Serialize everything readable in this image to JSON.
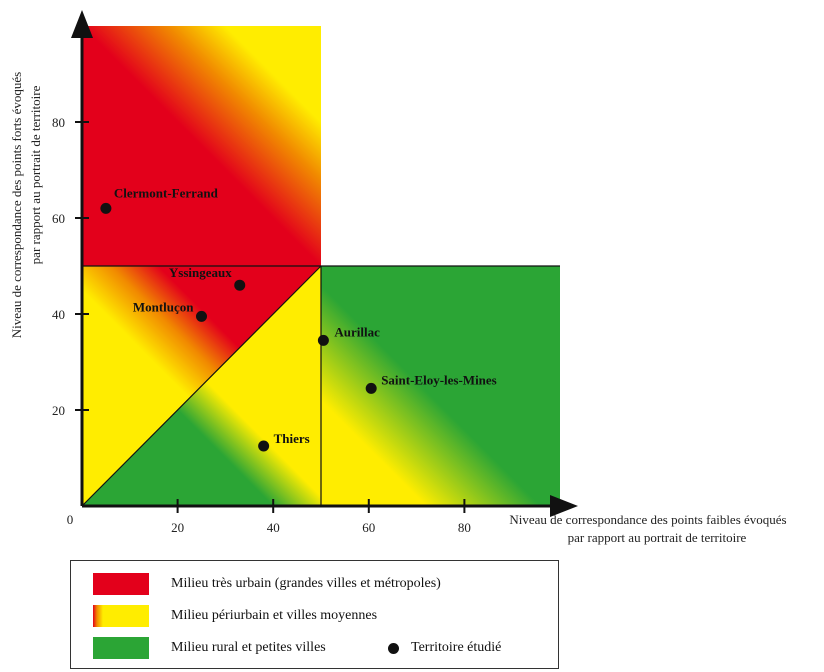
{
  "chart_data": {
    "type": "scatter",
    "xlabel": [
      "Niveau de correspondance des points faibles évoqués",
      "par rapport au portrait de territoire"
    ],
    "ylabel": [
      "Niveau de correspondance des points forts évoqués",
      "par rapport au portrait de territoire"
    ],
    "xlim": [
      0,
      100
    ],
    "ylim": [
      0,
      100
    ],
    "x_ticks": [
      20,
      40,
      60,
      80
    ],
    "y_ticks": [
      20,
      40,
      60,
      80
    ],
    "origin_label": "0",
    "grid": false,
    "zones": {
      "very_urban": {
        "label": "Milieu très urbain (grandes villes et métropoles)",
        "color": "#e3001b"
      },
      "periurban": {
        "label": "Milieu périurbain et villes moyennes",
        "color": "#ffed00"
      },
      "rural": {
        "label": "Milieu rural et petites villes",
        "color": "#2ba535"
      }
    },
    "points": [
      {
        "name": "Clermont-Ferrand",
        "x": 5,
        "y": 62
      },
      {
        "name": "Yssingeaux",
        "x": 33,
        "y": 46
      },
      {
        "name": "Montluçon",
        "x": 25,
        "y": 39.5
      },
      {
        "name": "Aurillac",
        "x": 50.5,
        "y": 34.5
      },
      {
        "name": "Saint-Eloy-les-Mines",
        "x": 60.5,
        "y": 24.5
      },
      {
        "name": "Thiers",
        "x": 38,
        "y": 12.5
      }
    ],
    "legend_point_label": "Territoire étudié"
  }
}
